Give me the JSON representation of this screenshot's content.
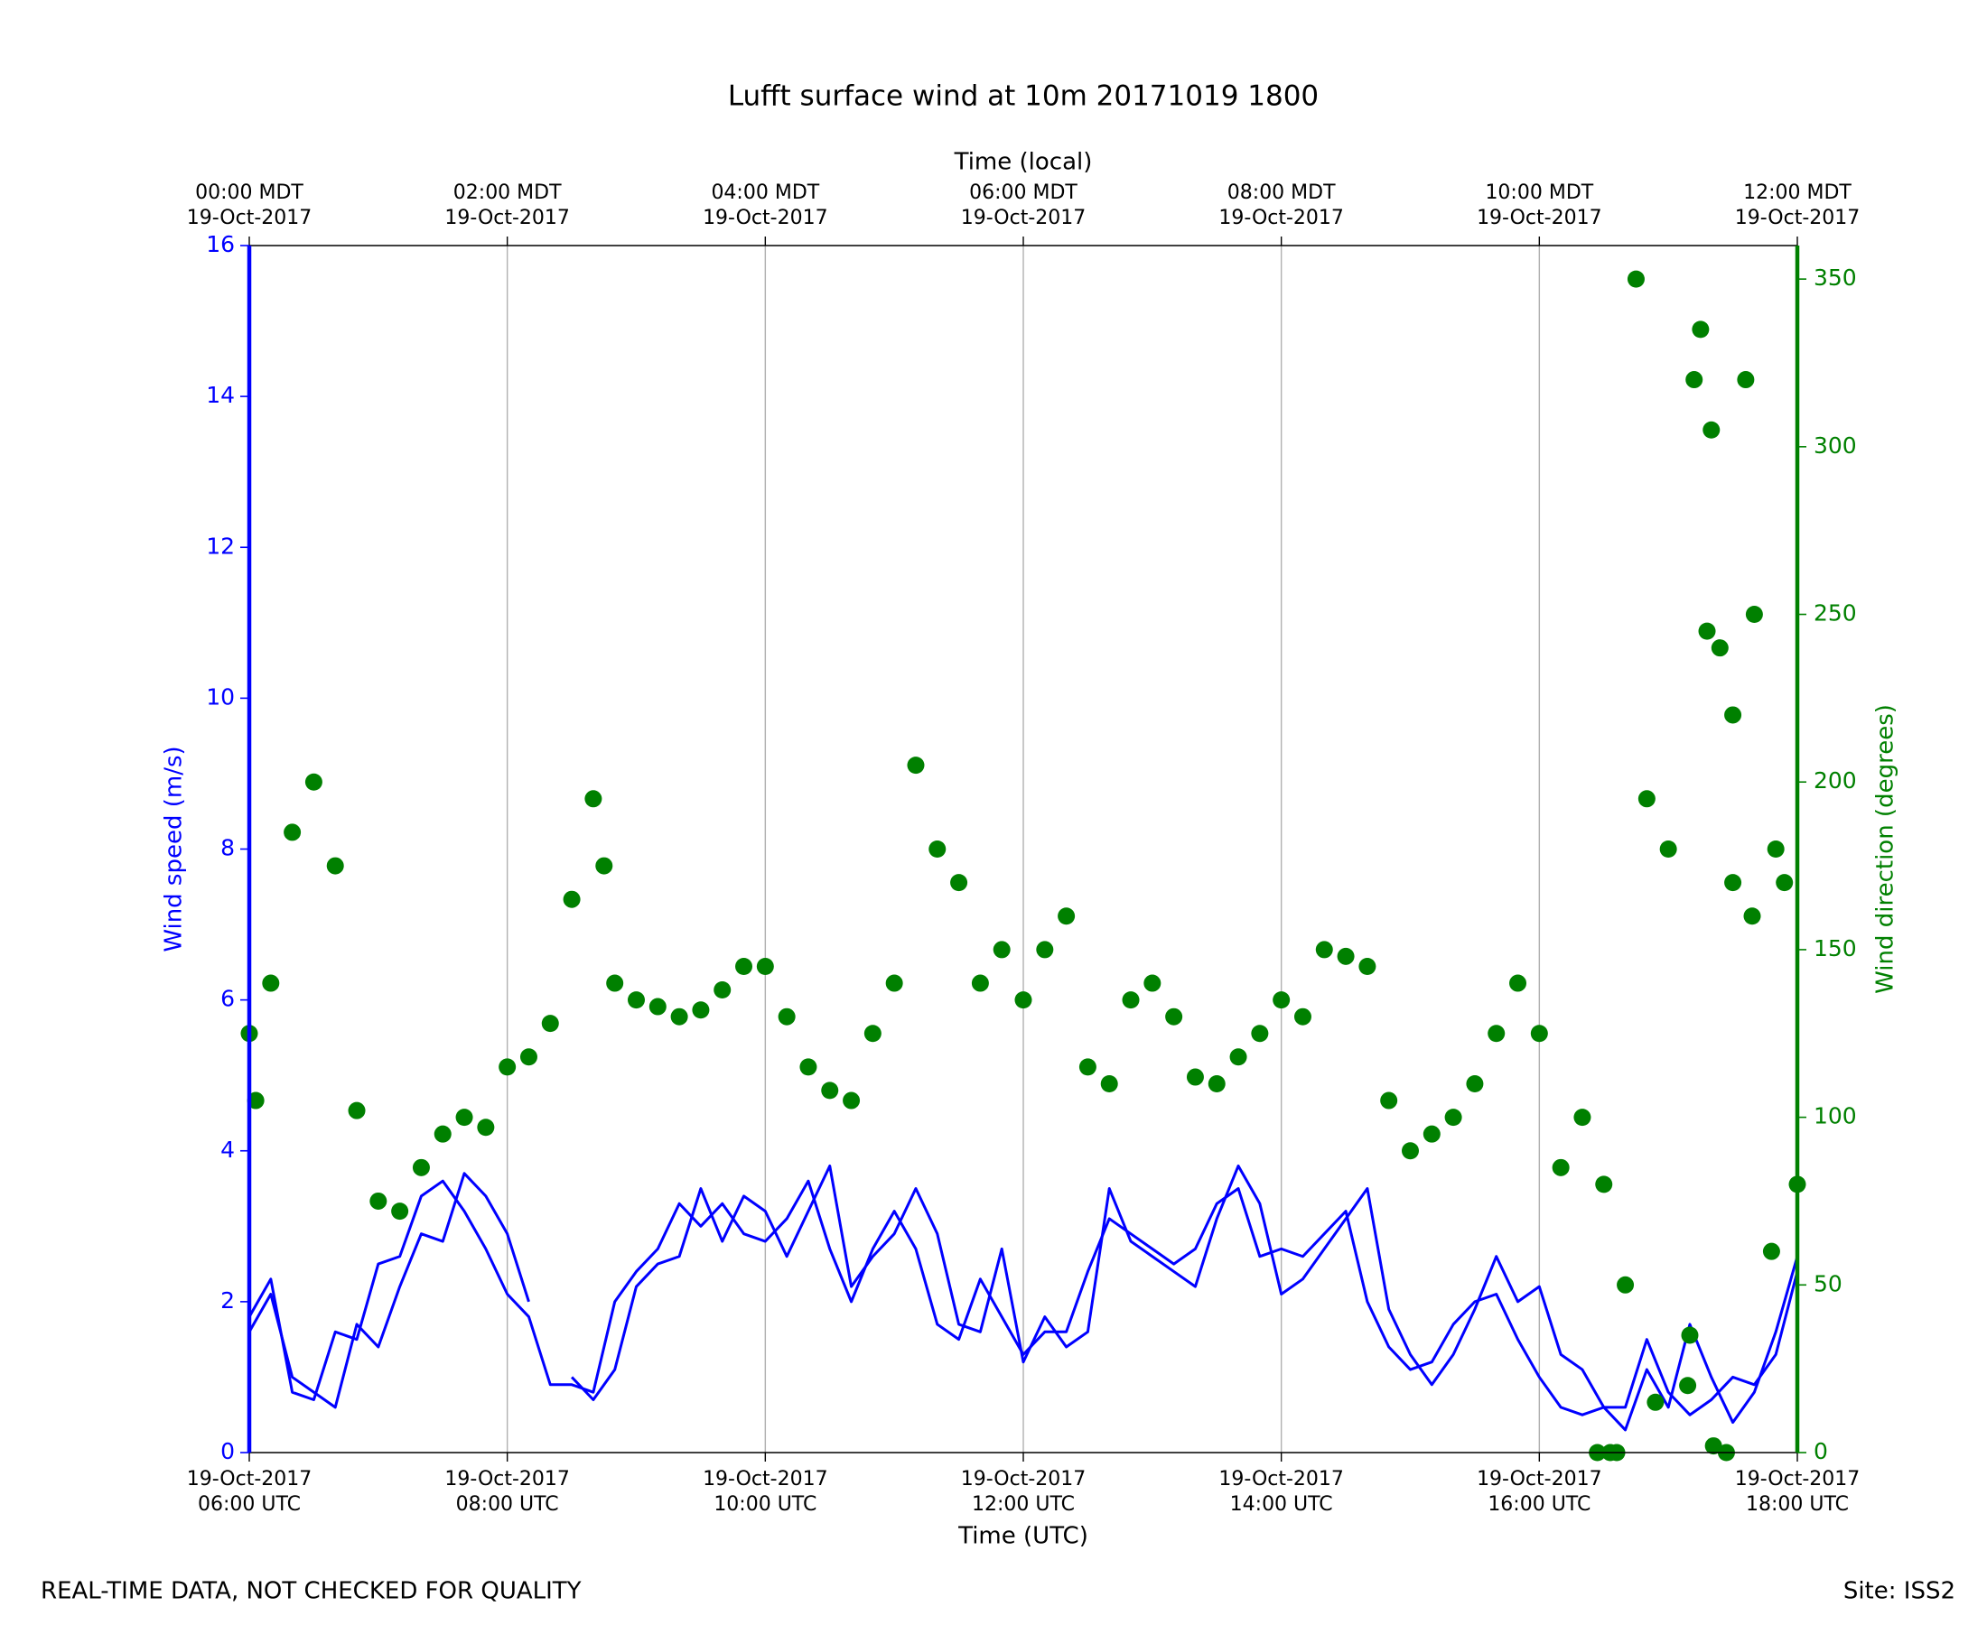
{
  "chart_data": {
    "type": "line",
    "title": "Lufft surface wind at 10m 20171019 1800",
    "xlabel": "Time (UTC)",
    "x2label": "Time (local)",
    "ylabel": "Wind speed (m/s)",
    "y2label": "Wind direction (degrees)",
    "footer_left": "REAL-TIME DATA, NOT CHECKED FOR QUALITY",
    "footer_right": "Site: ISS2",
    "grid": true,
    "xlim": [
      6,
      18
    ],
    "xticks": [
      {
        "value": 6,
        "label": [
          "19-Oct-2017",
          "06:00 UTC"
        ]
      },
      {
        "value": 8,
        "label": [
          "19-Oct-2017",
          "08:00 UTC"
        ]
      },
      {
        "value": 10,
        "label": [
          "19-Oct-2017",
          "10:00 UTC"
        ]
      },
      {
        "value": 12,
        "label": [
          "19-Oct-2017",
          "12:00 UTC"
        ]
      },
      {
        "value": 14,
        "label": [
          "19-Oct-2017",
          "14:00 UTC"
        ]
      },
      {
        "value": 16,
        "label": [
          "19-Oct-2017",
          "16:00 UTC"
        ]
      },
      {
        "value": 18,
        "label": [
          "19-Oct-2017",
          "18:00 UTC"
        ]
      }
    ],
    "x2lim": [
      0,
      12
    ],
    "x2ticks": [
      {
        "value": 0,
        "label": [
          "00:00 MDT",
          "19-Oct-2017"
        ]
      },
      {
        "value": 2,
        "label": [
          "02:00 MDT",
          "19-Oct-2017"
        ]
      },
      {
        "value": 4,
        "label": [
          "04:00 MDT",
          "19-Oct-2017"
        ]
      },
      {
        "value": 6,
        "label": [
          "06:00 MDT",
          "19-Oct-2017"
        ]
      },
      {
        "value": 8,
        "label": [
          "08:00 MDT",
          "19-Oct-2017"
        ]
      },
      {
        "value": 10,
        "label": [
          "10:00 MDT",
          "19-Oct-2017"
        ]
      },
      {
        "value": 12,
        "label": [
          "12:00 MDT",
          "19-Oct-2017"
        ]
      }
    ],
    "ylim": [
      0,
      16
    ],
    "yticks": [
      0,
      2,
      4,
      6,
      8,
      10,
      12,
      14,
      16
    ],
    "y_color": "#0000ff",
    "y2lim": [
      0,
      360
    ],
    "y2ticks": [
      0,
      50,
      100,
      150,
      200,
      250,
      300,
      350
    ],
    "y2_color": "#008000",
    "x": [
      6,
      6.1667,
      6.3333,
      6.5,
      6.6667,
      6.8333,
      7,
      7.1667,
      7.3333,
      7.5,
      7.6667,
      7.8333,
      8,
      8.1667,
      8.3333,
      8.5,
      8.6667,
      8.8333,
      9,
      9.1667,
      9.3333,
      9.5,
      9.6667,
      9.8333,
      10,
      10.1667,
      10.3333,
      10.5,
      10.6667,
      10.8333,
      11,
      11.1667,
      11.3333,
      11.5,
      11.6667,
      11.8333,
      12,
      12.1667,
      12.3333,
      12.5,
      12.6667,
      12.8333,
      13,
      13.1667,
      13.3333,
      13.5,
      13.6667,
      13.8333,
      14,
      14.1667,
      14.3333,
      14.5,
      14.6667,
      14.8333,
      15,
      15.1667,
      15.3333,
      15.5,
      15.6667,
      15.8333,
      16,
      16.1667,
      16.3333,
      16.5,
      16.6667,
      16.8333,
      17,
      17.1667,
      17.3333,
      17.5,
      17.6667,
      17.8333,
      18
    ],
    "series": [
      {
        "type": "line",
        "color": "#0000ff",
        "values": [
          1.8,
          2.3,
          0.8,
          0.7,
          1.6,
          1.5,
          2.5,
          2.6,
          3.4,
          3.6,
          3.2,
          2.7,
          2.1,
          1.8,
          0.9,
          0.9,
          0.8,
          2.0,
          2.4,
          2.7,
          3.3,
          3.0,
          3.3,
          2.9,
          2.8,
          3.1,
          3.6,
          2.7,
          2.0,
          2.7,
          3.2,
          2.7,
          1.7,
          1.5,
          2.3,
          1.8,
          1.3,
          1.6,
          1.6,
          2.4,
          3.1,
          2.9,
          2.7,
          2.5,
          2.7,
          3.3,
          3.5,
          2.6,
          2.7,
          2.6,
          2.9,
          3.2,
          2.0,
          1.4,
          1.1,
          1.2,
          1.7,
          2.0,
          2.1,
          1.5,
          1.0,
          0.6,
          0.5,
          0.6,
          0.6,
          1.5,
          0.8,
          0.5,
          0.7,
          1.0,
          0.9,
          1.3,
          2.4
        ]
      },
      {
        "type": "line",
        "color": "#0000ff",
        "values": [
          1.6,
          2.1,
          1.0,
          0.8,
          0.6,
          1.7,
          1.4,
          2.2,
          2.9,
          2.8,
          3.7,
          3.4,
          2.9,
          2.0,
          null,
          1.0,
          0.7,
          1.1,
          2.2,
          2.5,
          2.6,
          3.5,
          2.8,
          3.4,
          3.2,
          2.6,
          3.2,
          3.8,
          2.2,
          2.6,
          2.9,
          3.5,
          2.9,
          1.7,
          1.6,
          2.7,
          1.2,
          1.8,
          1.4,
          1.6,
          3.5,
          2.8,
          2.6,
          2.4,
          2.2,
          3.1,
          3.8,
          3.3,
          2.1,
          2.3,
          2.7,
          3.1,
          3.5,
          1.9,
          1.3,
          0.9,
          1.3,
          1.9,
          2.6,
          2.0,
          2.2,
          1.3,
          1.1,
          0.6,
          0.3,
          1.1,
          0.6,
          1.7,
          1.0,
          0.4,
          0.8,
          1.6,
          2.6
        ]
      },
      {
        "type": "scatter",
        "axis": "y2",
        "color": "#008000",
        "x": [
          6,
          6.1667,
          6.3333,
          6.5,
          6.6667,
          6.8333,
          7,
          7.1667,
          7.3333,
          7.5,
          7.6667,
          7.8333,
          8,
          8.1667,
          8.3333,
          8.5,
          8.6667,
          8.8333,
          9,
          9.1667,
          9.3333,
          9.5,
          9.6667,
          9.8333,
          10,
          10.1667,
          10.3333,
          10.5,
          10.6667,
          10.8333,
          11,
          11.1667,
          11.3333,
          11.5,
          11.6667,
          11.8333,
          12,
          12.1667,
          12.3333,
          12.5,
          12.6667,
          12.8333,
          13,
          13.1667,
          13.3333,
          13.5,
          13.6667,
          13.8333,
          14,
          14.1667,
          14.3333,
          14.5,
          14.6667,
          14.8333,
          15,
          15.1667,
          15.3333,
          15.5,
          15.6667,
          15.8333,
          16,
          16.1667,
          16.3333,
          16.5,
          16.6667,
          16.8333,
          17,
          17.1667,
          17.3333,
          17.5,
          17.6667,
          17.8333,
          18,
          16.75,
          17.2,
          17.25,
          17.3,
          17.4,
          17.5,
          17.6,
          17.65,
          17.8,
          17.9,
          16.55,
          16.6,
          17.45,
          16.45,
          17.35,
          16.9,
          17.15,
          6.05,
          8.75
        ],
        "values": [
          125,
          140,
          185,
          200,
          175,
          102,
          75,
          72,
          85,
          95,
          100,
          97,
          115,
          118,
          128,
          165,
          195,
          140,
          135,
          133,
          130,
          132,
          138,
          145,
          145,
          130,
          115,
          108,
          105,
          125,
          140,
          205,
          180,
          170,
          140,
          150,
          135,
          150,
          160,
          115,
          110,
          135,
          140,
          130,
          112,
          110,
          118,
          125,
          135,
          130,
          150,
          148,
          145,
          105,
          90,
          95,
          100,
          110,
          125,
          140,
          125,
          85,
          100,
          80,
          50,
          195,
          180,
          35,
          305,
          170,
          250,
          180,
          80,
          350,
          320,
          335,
          245,
          240,
          220,
          320,
          160,
          60,
          170,
          0,
          0,
          0,
          0,
          2,
          15,
          20,
          105,
          175
        ]
      }
    ]
  }
}
